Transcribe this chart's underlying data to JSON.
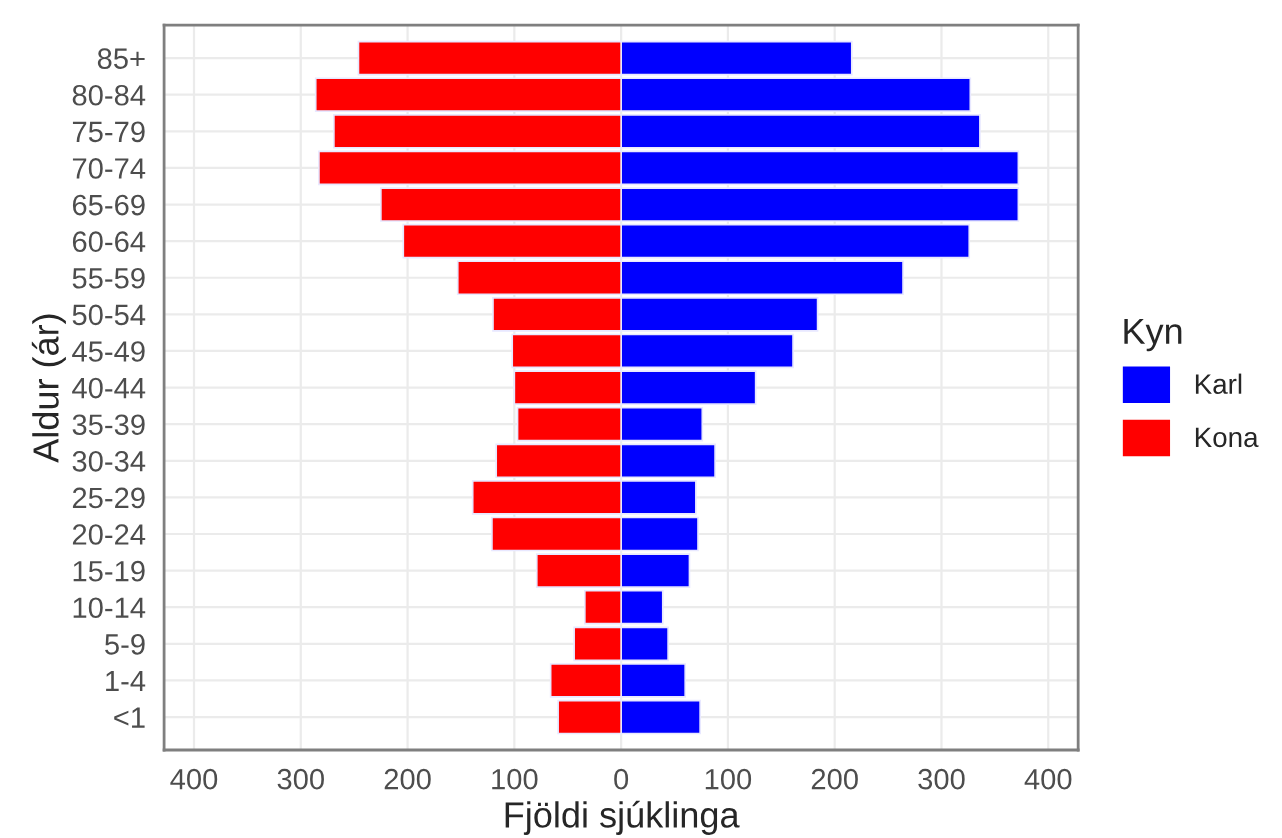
{
  "chart_data": {
    "type": "bar",
    "orientation": "horizontal",
    "stacked": true,
    "xlabel": "Fjöldi sjúklinga",
    "ylabel": "Aldur (ár)",
    "legend_title": "Kyn",
    "legend": "right",
    "grid": true,
    "categories": [
      "85+",
      "80-84",
      "75-79",
      "70-74",
      "65-69",
      "60-64",
      "55-59",
      "50-54",
      "45-49",
      "40-44",
      "35-39",
      "30-34",
      "25-29",
      "20-24",
      "15-19",
      "10-14",
      "5-9",
      "1-4",
      "<1"
    ],
    "series": [
      {
        "name": "Karl",
        "color": "#0000ff",
        "values": [
          216,
          327,
          336,
          372,
          372,
          326,
          264,
          184,
          161,
          126,
          76,
          88,
          70,
          72,
          64,
          39,
          44,
          60,
          74
        ]
      },
      {
        "name": "Kona",
        "color": "#ff0000",
        "values": [
          -246,
          -286,
          -269,
          -283,
          -225,
          -204,
          -153,
          -120,
          -102,
          -100,
          -97,
          -117,
          -139,
          -121,
          -79,
          -34,
          -44,
          -66,
          -59
        ]
      }
    ],
    "xlim": [
      -428,
      428
    ],
    "xticks": [
      {
        "value": -400,
        "label": "400"
      },
      {
        "value": -300,
        "label": "300"
      },
      {
        "value": -200,
        "label": "200"
      },
      {
        "value": -100,
        "label": "100"
      },
      0,
      100,
      200,
      300,
      400
    ]
  }
}
